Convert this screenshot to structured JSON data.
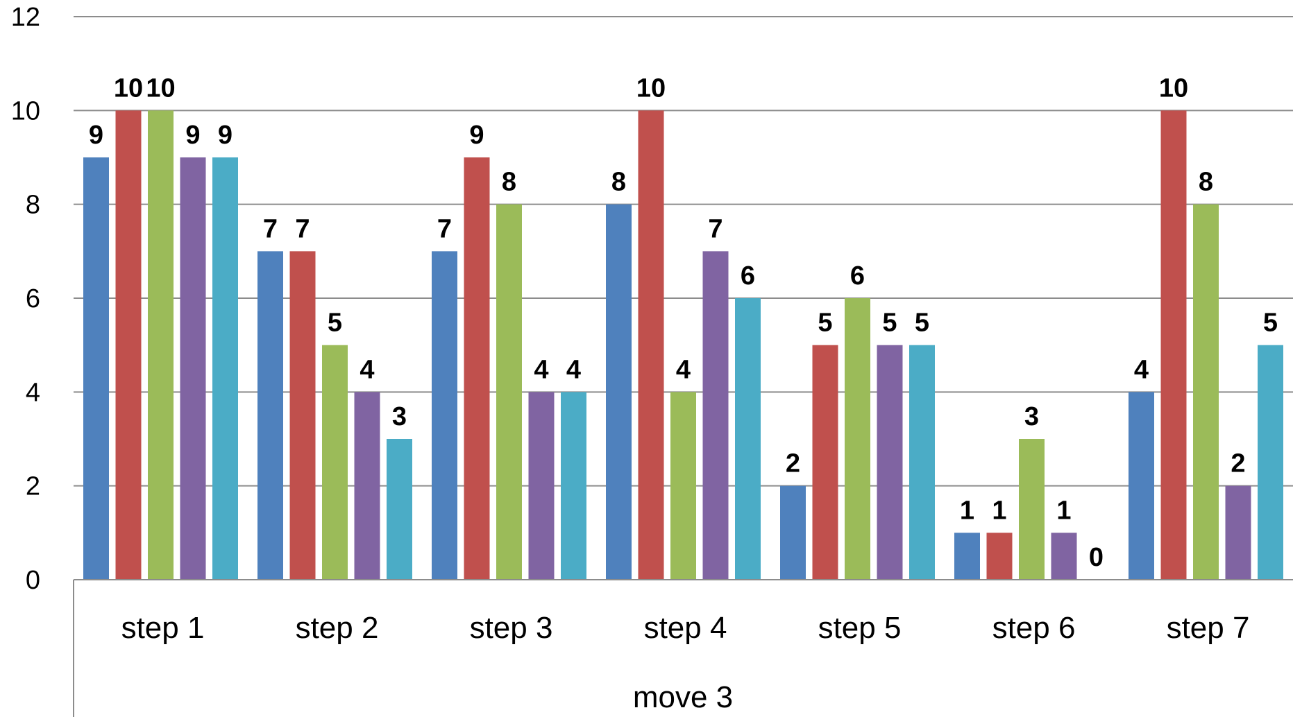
{
  "chart_data": {
    "type": "bar",
    "group_label": "move 3",
    "categories": [
      "step 1",
      "step 2",
      "step 3",
      "step 4",
      "step 5",
      "step 6",
      "step 7"
    ],
    "series": [
      {
        "color": "#4f81bd",
        "values": [
          9,
          7,
          7,
          8,
          2,
          1,
          4
        ]
      },
      {
        "color": "#c0504d",
        "values": [
          10,
          7,
          9,
          10,
          5,
          1,
          10
        ]
      },
      {
        "color": "#9bbb59",
        "values": [
          10,
          5,
          8,
          4,
          6,
          3,
          8
        ]
      },
      {
        "color": "#8064a2",
        "values": [
          9,
          4,
          4,
          7,
          5,
          1,
          2
        ]
      },
      {
        "color": "#4bacc6",
        "values": [
          9,
          3,
          4,
          6,
          5,
          0,
          5
        ]
      }
    ],
    "ylim": [
      0,
      12
    ],
    "yticks": [
      "0",
      "2",
      "4",
      "6",
      "8",
      "10",
      "12"
    ],
    "grid": true,
    "legend": "none",
    "data_labels": true
  }
}
